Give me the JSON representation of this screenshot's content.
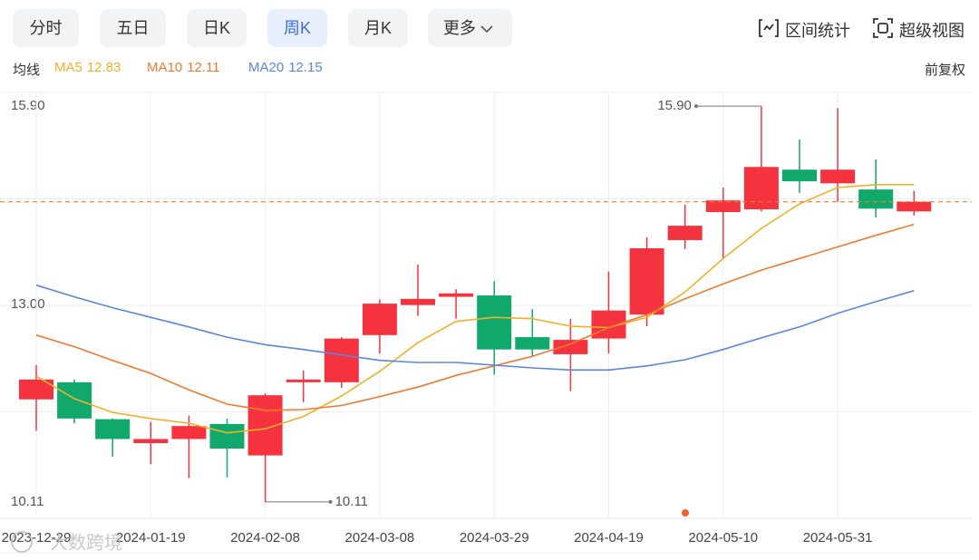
{
  "tabs": [
    "分时",
    "五日",
    "日K",
    "周K",
    "月K",
    "更多"
  ],
  "active_tab": 3,
  "tools": [
    "区间统计",
    "超级视图"
  ],
  "ma_title": "均线",
  "adjust": "前复权",
  "watermark": "大数跨境",
  "chart_data": {
    "type": "candlestick",
    "categories": [
      "2023-12-29",
      null,
      null,
      "2024-01-19",
      null,
      null,
      "2024-02-08",
      null,
      null,
      "2024-03-08",
      null,
      null,
      "2024-03-29",
      null,
      null,
      "2024-04-19",
      null,
      null,
      "2024-05-10",
      null,
      null,
      "2024-05-31",
      null,
      null
    ],
    "open": [
      11.61,
      11.86,
      11.32,
      10.97,
      11.03,
      11.25,
      10.79,
      11.86,
      11.86,
      12.55,
      12.99,
      13.11,
      13.13,
      12.52,
      12.27,
      12.5,
      12.85,
      13.94,
      14.35,
      14.39,
      14.97,
      14.77,
      14.68,
      14.36
    ],
    "close": [
      11.9,
      11.33,
      11.03,
      11.03,
      11.22,
      10.89,
      11.67,
      11.9,
      12.5,
      13.01,
      13.08,
      13.16,
      12.34,
      12.34,
      12.48,
      12.91,
      13.82,
      14.15,
      14.52,
      15.01,
      14.8,
      14.97,
      14.4,
      14.5
    ],
    "high": [
      12.11,
      11.9,
      11.33,
      11.28,
      11.37,
      11.33,
      11.7,
      12.03,
      12.52,
      13.07,
      13.58,
      13.22,
      13.34,
      12.93,
      12.79,
      13.48,
      13.98,
      14.46,
      14.71,
      15.9,
      15.41,
      15.87,
      15.12,
      14.66
    ],
    "low": [
      11.15,
      11.26,
      10.77,
      10.66,
      10.46,
      10.47,
      10.11,
      11.57,
      11.78,
      12.28,
      12.83,
      12.79,
      11.97,
      12.24,
      11.73,
      12.28,
      12.68,
      13.81,
      13.67,
      14.36,
      14.63,
      14.5,
      14.27,
      14.3
    ],
    "up_color": "#f5333f",
    "down_color": "#10a86b",
    "series": [
      {
        "name": "MA5",
        "legend_value": 12.83,
        "color": "#f0b02a",
        "values": [
          11.95,
          11.62,
          11.42,
          11.33,
          11.26,
          11.12,
          11.18,
          11.36,
          11.66,
          12.02,
          12.44,
          12.75,
          12.81,
          12.79,
          12.68,
          12.66,
          12.81,
          13.18,
          13.67,
          14.11,
          14.47,
          14.71,
          14.75,
          14.75
        ]
      },
      {
        "name": "MA10",
        "legend_value": 12.11,
        "color": "#ee7a30",
        "values": [
          12.55,
          12.38,
          12.18,
          11.99,
          11.75,
          11.54,
          11.45,
          11.46,
          11.52,
          11.65,
          11.79,
          11.96,
          12.1,
          12.24,
          12.42,
          12.66,
          12.85,
          13.08,
          13.3,
          13.5,
          13.67,
          13.84,
          14.01,
          14.17
        ]
      },
      {
        "name": "MA20",
        "legend_value": 12.15,
        "color": "#5a86e0",
        "values": [
          13.28,
          13.11,
          12.95,
          12.81,
          12.67,
          12.52,
          12.41,
          12.34,
          12.26,
          12.18,
          12.15,
          12.15,
          12.11,
          12.07,
          12.04,
          12.04,
          12.1,
          12.19,
          12.34,
          12.51,
          12.67,
          12.87,
          13.04,
          13.2
        ]
      }
    ],
    "max_label": "15.90",
    "min_label": "10.11",
    "ylim": [
      9.87,
      16.1
    ],
    "yticks": [
      {
        "value": 15.9,
        "label": "15.90"
      },
      {
        "value": 13,
        "label": "13.00"
      },
      10.11
    ]
  }
}
